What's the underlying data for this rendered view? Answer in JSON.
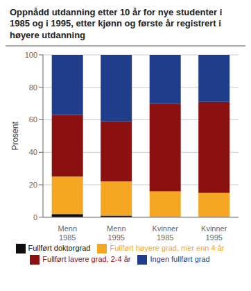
{
  "chart_data": {
    "type": "bar",
    "title": "Oppnådd utdanning etter 10 år for nye studenter i 1985 og i 1995, etter kjønn og første år registrert i høyere utdanning",
    "ylabel": "Prosent",
    "categories": [
      "Menn\n1985",
      "Menn\n1995",
      "Kvinner\n1985",
      "Kvinner\n1995"
    ],
    "series": [
      {
        "name": "Fullført doktorgrad",
        "color": "#0d0d0d",
        "values": [
          2,
          1,
          0,
          0
        ]
      },
      {
        "name": "Fullført høyere grad, mer enn 4 år",
        "color": "#f5a623",
        "values": [
          23,
          21,
          16,
          15
        ]
      },
      {
        "name": "Fullført lavere grad, 2-4 år",
        "color": "#8b1010",
        "values": [
          38,
          37,
          54,
          56
        ]
      },
      {
        "name": "Ingen fullført grad",
        "color": "#1f3d8a",
        "values": [
          37,
          41,
          30,
          29
        ]
      }
    ],
    "ylim": [
      0,
      100
    ],
    "yticks": [
      0,
      20,
      40,
      60,
      80,
      100
    ],
    "stacked": true,
    "grid": true,
    "legend": "bottom"
  }
}
